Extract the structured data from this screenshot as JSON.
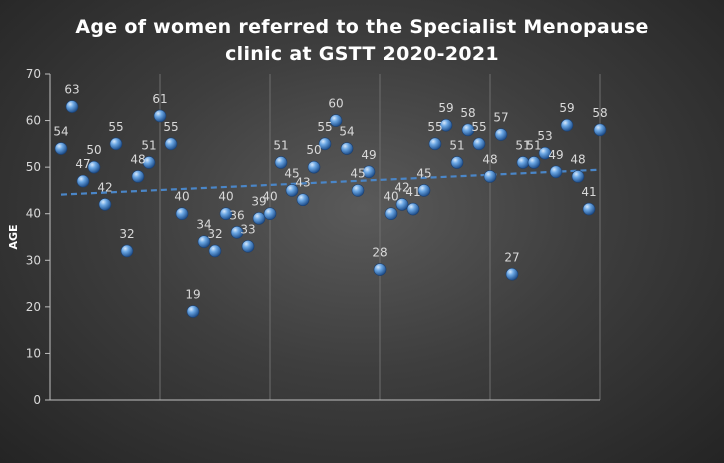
{
  "chart_data": {
    "type": "scatter",
    "title_lines": [
      "Age of women referred to the Specialist Menopause",
      "clinic at GSTT 2020-2021"
    ],
    "xlabel": "",
    "ylabel": "AGE",
    "ylim": [
      0,
      70
    ],
    "yticks": [
      0,
      10,
      20,
      30,
      40,
      50,
      60,
      70
    ],
    "xlim": [
      0,
      50
    ],
    "grid": {
      "vertical": true,
      "horizontal": false
    },
    "show_x_tick_labels": false,
    "trendline": {
      "type": "linear",
      "style": "dashed",
      "color": "#4a86c8"
    },
    "marker_color": "#5b9bd5",
    "label_color": "#d9d9d9",
    "axis_color": "#bfbfbf",
    "x": [
      1,
      2,
      3,
      4,
      5,
      6,
      7,
      8,
      9,
      10,
      11,
      12,
      13,
      14,
      15,
      16,
      17,
      18,
      19,
      20,
      21,
      22,
      23,
      24,
      25,
      26,
      27,
      28,
      29,
      30,
      31,
      32,
      33,
      34,
      35,
      36,
      37,
      38,
      39,
      40,
      41,
      42,
      43,
      44,
      45,
      46,
      47,
      48,
      49,
      50
    ],
    "values": [
      54,
      63,
      47,
      50,
      42,
      55,
      32,
      48,
      51,
      61,
      55,
      40,
      19,
      34,
      32,
      40,
      36,
      33,
      39,
      40,
      51,
      45,
      43,
      50,
      55,
      60,
      54,
      45,
      49,
      28,
      40,
      42,
      41,
      45,
      55,
      59,
      51,
      58,
      55,
      48,
      57,
      27,
      51,
      51,
      53,
      49,
      59,
      48,
      41,
      58
    ]
  }
}
